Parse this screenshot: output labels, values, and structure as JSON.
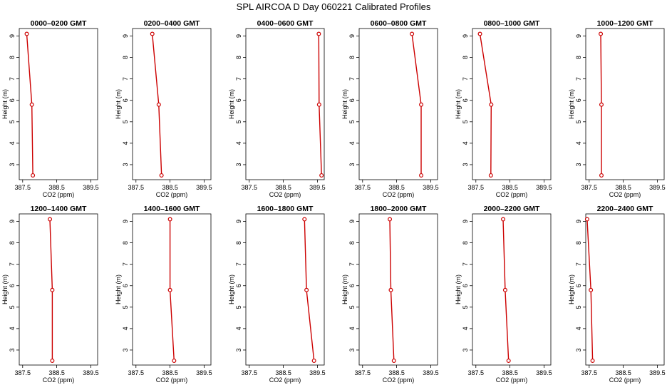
{
  "figure": {
    "title": "SPL AIRCOA D  Day 060221  Calibrated Profiles"
  },
  "chart_data": {
    "type": "line",
    "xlabel": "CO2 (ppm)",
    "ylabel": "Height (m)",
    "xlim": [
      387.4,
      389.7
    ],
    "ylim": [
      2.3,
      9.35
    ],
    "xticks": [
      387.5,
      388.5,
      389.5
    ],
    "yticks": [
      3,
      4,
      5,
      6,
      7,
      8,
      9
    ],
    "series_color": "#cc0000",
    "panels": [
      {
        "title": "0000–0200 GMT",
        "points": [
          {
            "x": 387.62,
            "y": 9.1
          },
          {
            "x": 387.77,
            "y": 5.8
          },
          {
            "x": 387.8,
            "y": 2.5
          }
        ]
      },
      {
        "title": "0200–0400 GMT",
        "points": [
          {
            "x": 387.98,
            "y": 9.1
          },
          {
            "x": 388.17,
            "y": 5.8
          },
          {
            "x": 388.25,
            "y": 2.5
          }
        ]
      },
      {
        "title": "0400–0600 GMT",
        "points": [
          {
            "x": 389.54,
            "y": 9.1
          },
          {
            "x": 389.55,
            "y": 5.8
          },
          {
            "x": 389.62,
            "y": 2.5
          }
        ]
      },
      {
        "title": "0600–0800 GMT",
        "points": [
          {
            "x": 388.95,
            "y": 9.1
          },
          {
            "x": 389.22,
            "y": 5.8
          },
          {
            "x": 389.22,
            "y": 2.5
          }
        ]
      },
      {
        "title": "0800–1000 GMT",
        "points": [
          {
            "x": 387.62,
            "y": 9.1
          },
          {
            "x": 387.95,
            "y": 5.8
          },
          {
            "x": 387.94,
            "y": 2.5
          }
        ]
      },
      {
        "title": "1000–1200 GMT",
        "points": [
          {
            "x": 387.84,
            "y": 9.1
          },
          {
            "x": 387.86,
            "y": 5.8
          },
          {
            "x": 387.86,
            "y": 2.5
          }
        ]
      },
      {
        "title": "1200–1400 GMT",
        "points": [
          {
            "x": 388.3,
            "y": 9.1
          },
          {
            "x": 388.37,
            "y": 5.8
          },
          {
            "x": 388.37,
            "y": 2.5
          }
        ]
      },
      {
        "title": "1400–1600 GMT",
        "points": [
          {
            "x": 388.5,
            "y": 9.1
          },
          {
            "x": 388.5,
            "y": 5.8
          },
          {
            "x": 388.62,
            "y": 2.5
          }
        ]
      },
      {
        "title": "1600–1800 GMT",
        "points": [
          {
            "x": 389.12,
            "y": 9.1
          },
          {
            "x": 389.18,
            "y": 5.8
          },
          {
            "x": 389.4,
            "y": 2.5
          }
        ]
      },
      {
        "title": "1800–2000 GMT",
        "points": [
          {
            "x": 388.3,
            "y": 9.1
          },
          {
            "x": 388.33,
            "y": 5.8
          },
          {
            "x": 388.42,
            "y": 2.5
          }
        ]
      },
      {
        "title": "2000–2200 GMT",
        "points": [
          {
            "x": 388.3,
            "y": 9.1
          },
          {
            "x": 388.36,
            "y": 5.8
          },
          {
            "x": 388.46,
            "y": 2.5
          }
        ]
      },
      {
        "title": "2200–2400 GMT",
        "points": [
          {
            "x": 387.44,
            "y": 9.1
          },
          {
            "x": 387.55,
            "y": 5.8
          },
          {
            "x": 387.6,
            "y": 2.5
          }
        ]
      }
    ]
  }
}
